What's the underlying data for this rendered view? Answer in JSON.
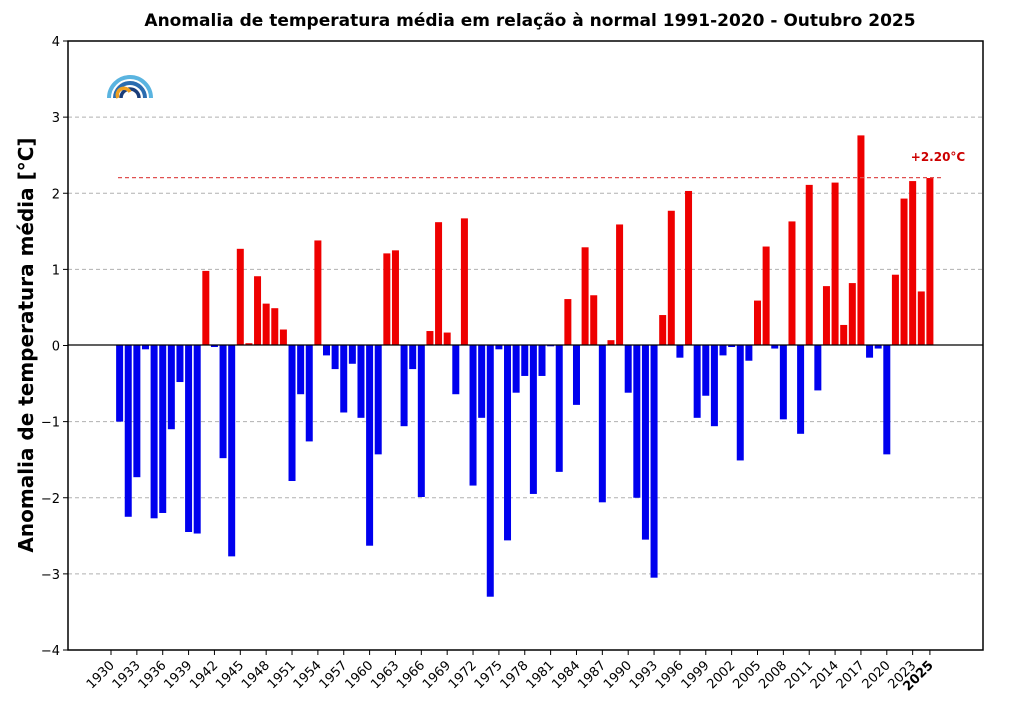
{
  "chart_data": {
    "type": "bar",
    "title": "Anomalia de temperatura média em relação à normal 1991-2020 - Outubro 2025",
    "xlabel": "",
    "ylabel": "Anomalia de temperatura média [°C]",
    "ylim": [
      -4,
      4
    ],
    "yticks": [
      "4",
      "3",
      "2",
      "1",
      "0",
      "−1",
      "−2",
      "−3",
      "−4"
    ],
    "xticks": [
      "1930",
      "1933",
      "1936",
      "1939",
      "1942",
      "1945",
      "1948",
      "1951",
      "1954",
      "1957",
      "1960",
      "1963",
      "1966",
      "1969",
      "1972",
      "1975",
      "1978",
      "1981",
      "1984",
      "1987",
      "1990",
      "1993",
      "1996",
      "1999",
      "2002",
      "2005",
      "2008",
      "2011",
      "2014",
      "2017",
      "2020",
      "2023",
      "2025"
    ],
    "grid": "horizontal dashed",
    "colors": {
      "positive": "#ee0000",
      "negative": "#0000ee",
      "reference": "#e05050",
      "annotation": "#cc0000"
    },
    "reference_line": {
      "value": 2.2,
      "label": "+2.20°C"
    },
    "categories": [
      1931,
      1932,
      1933,
      1934,
      1935,
      1936,
      1937,
      1938,
      1939,
      1940,
      1941,
      1942,
      1943,
      1944,
      1945,
      1946,
      1947,
      1948,
      1949,
      1950,
      1951,
      1952,
      1953,
      1954,
      1955,
      1956,
      1957,
      1958,
      1959,
      1960,
      1961,
      1962,
      1963,
      1964,
      1965,
      1966,
      1967,
      1968,
      1969,
      1970,
      1971,
      1972,
      1973,
      1974,
      1975,
      1976,
      1977,
      1978,
      1979,
      1980,
      1981,
      1982,
      1983,
      1984,
      1985,
      1986,
      1987,
      1988,
      1989,
      1990,
      1991,
      1992,
      1993,
      1994,
      1995,
      1996,
      1997,
      1998,
      1999,
      2000,
      2001,
      2002,
      2003,
      2004,
      2005,
      2006,
      2007,
      2008,
      2009,
      2010,
      2011,
      2012,
      2013,
      2014,
      2015,
      2016,
      2017,
      2018,
      2019,
      2020,
      2021,
      2022,
      2023,
      2024,
      2025
    ],
    "values": [
      -1.0,
      -2.25,
      -1.73,
      -0.05,
      -2.27,
      -2.2,
      -1.1,
      -0.48,
      -2.45,
      -2.47,
      0.98,
      -0.02,
      -1.48,
      -2.77,
      1.27,
      0.03,
      0.91,
      0.55,
      0.49,
      0.21,
      -1.78,
      -0.64,
      -1.26,
      1.38,
      -0.13,
      -0.31,
      -0.88,
      -0.24,
      -0.95,
      -2.63,
      -1.43,
      1.21,
      1.25,
      -1.06,
      -0.31,
      -1.99,
      0.19,
      1.62,
      0.17,
      -0.64,
      1.67,
      -1.84,
      -0.95,
      -3.3,
      -0.05,
      -2.56,
      -0.62,
      -0.4,
      -1.95,
      -0.4,
      -0.01,
      -1.66,
      0.61,
      -0.78,
      1.29,
      0.66,
      -2.06,
      0.07,
      1.59,
      -0.62,
      -2.0,
      -2.55,
      -3.05,
      0.4,
      1.77,
      -0.16,
      2.03,
      -0.95,
      -0.66,
      -1.06,
      -0.13,
      -0.02,
      -1.51,
      -0.2,
      0.59,
      1.3,
      -0.04,
      -0.97,
      1.63,
      -1.16,
      2.11,
      -0.59,
      0.78,
      2.14,
      0.27,
      0.82,
      2.76,
      -0.16,
      -0.04,
      -1.43,
      0.93,
      1.93,
      2.16,
      0.71,
      2.2
    ]
  },
  "logo": {
    "icon": "rainbow-arcs-logo"
  }
}
